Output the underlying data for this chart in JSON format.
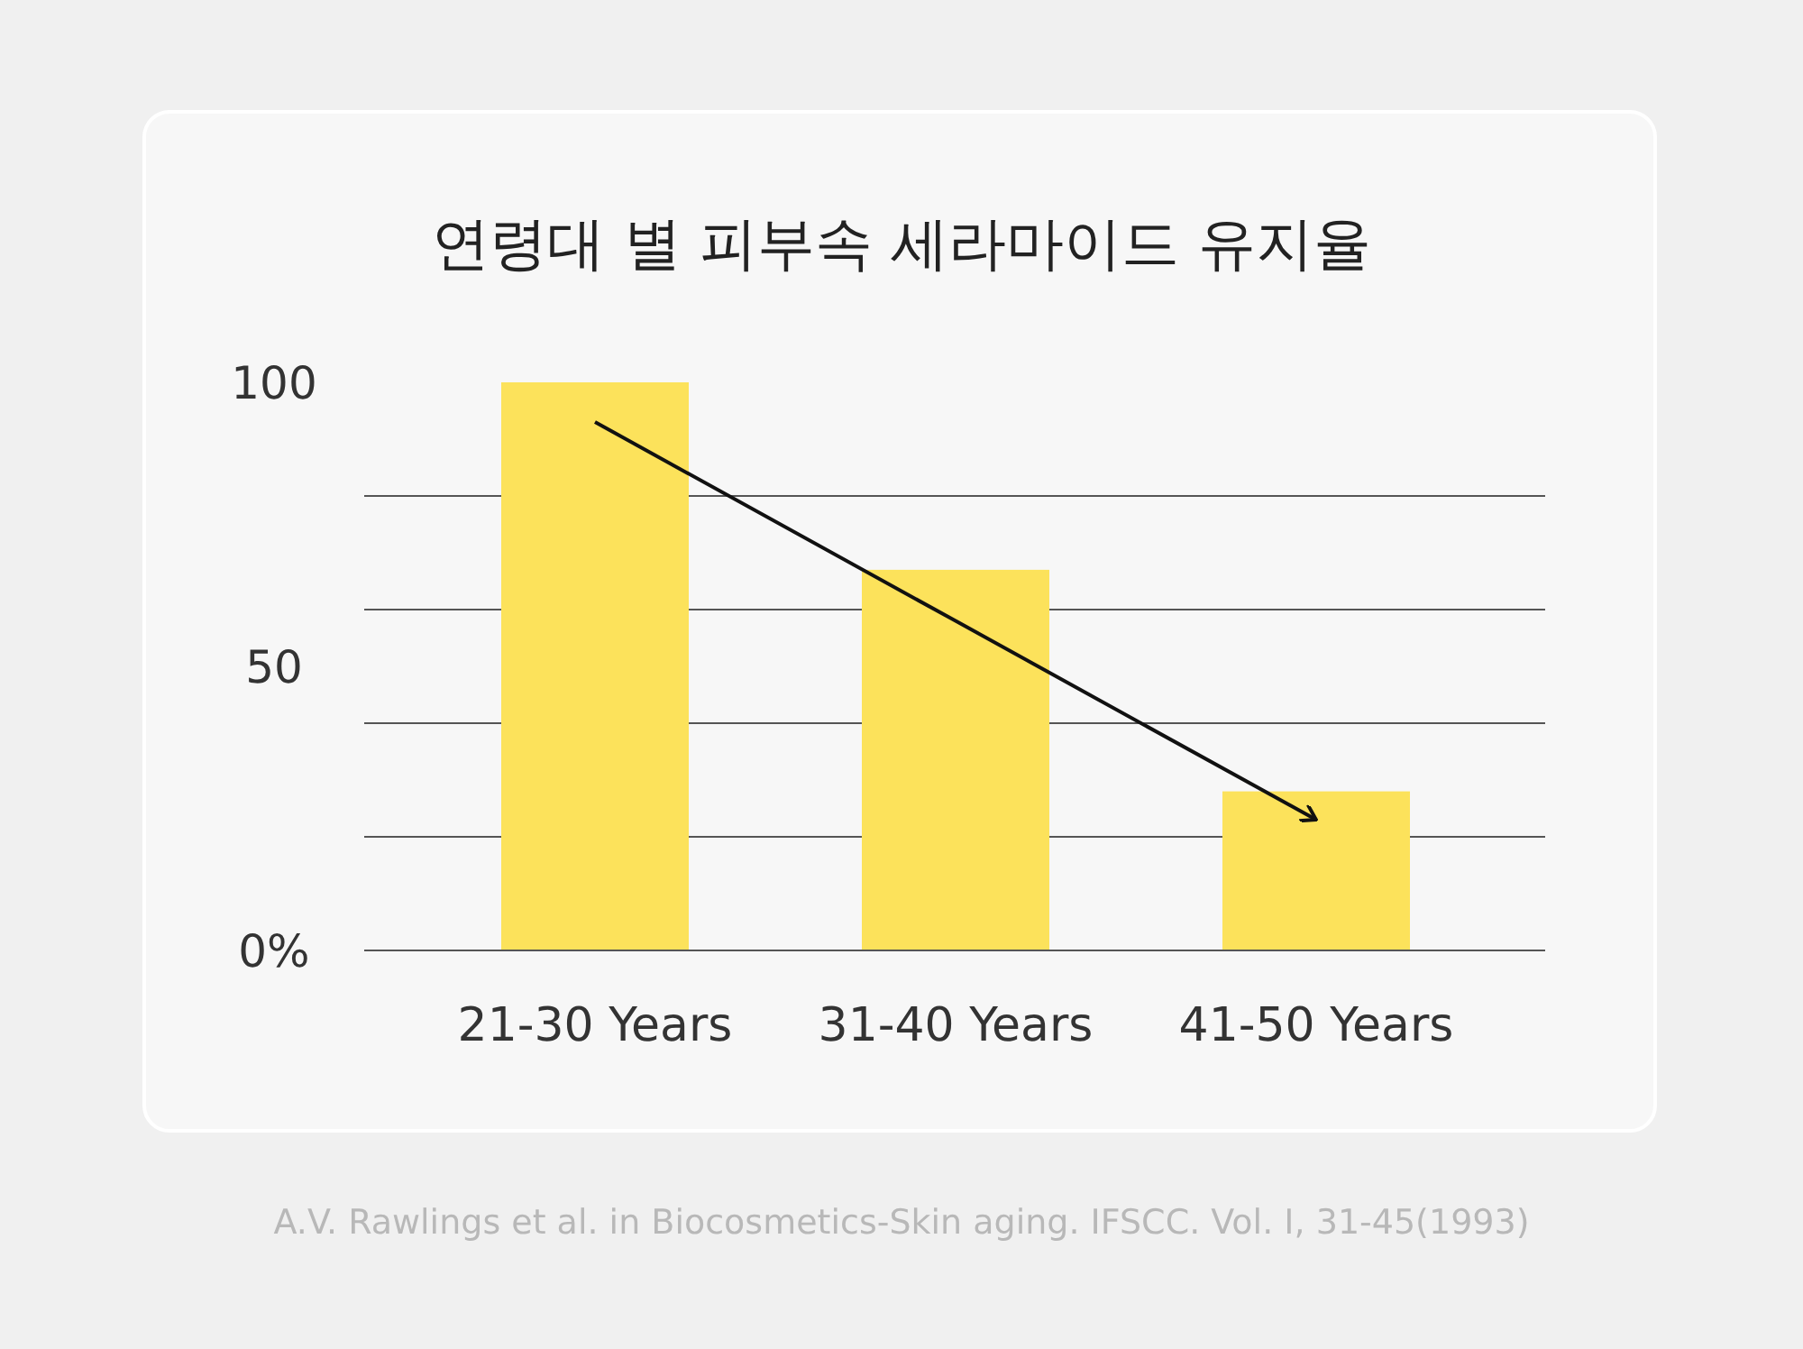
{
  "chart_data": {
    "type": "bar",
    "title": "연령대 별 피부속 세라마이드 유지율",
    "categories": [
      "21-30 Years",
      "31-40 Years",
      "41-50 Years"
    ],
    "values": [
      100,
      67,
      28
    ],
    "color": "#fce25b",
    "series": [
      {
        "type": "line",
        "color": "#111111",
        "values": [
          93,
          58,
          23
        ]
      }
    ],
    "ylim": [
      0,
      100
    ],
    "yticks": [
      {
        "value": 0,
        "label": "0%"
      },
      {
        "value": 20,
        "label": null
      },
      {
        "value": 40,
        "label": null
      },
      50,
      {
        "value": 60,
        "label": null
      },
      {
        "value": 80,
        "label": null
      },
      100
    ],
    "grid": "y",
    "annotations": [
      "A.V. Rawlings et al. in Biocosmetics-Skin aging. IFSCC. Vol. I, 31-45(1993)"
    ]
  }
}
